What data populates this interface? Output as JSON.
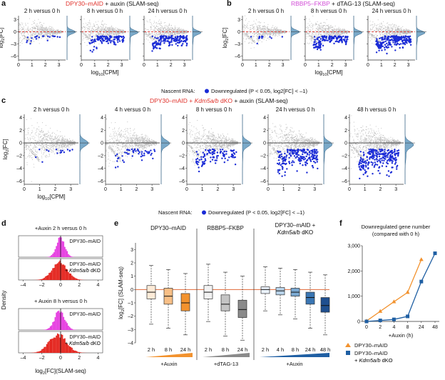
{
  "panels": {
    "a": {
      "letter": "a",
      "title_parts": [
        {
          "text": "DPY30–mAID",
          "color": "#e0312a"
        },
        {
          "text": " + auxin (SLAM-seq)",
          "color": "#111111"
        }
      ],
      "subplots": [
        "2 h versus 0 h",
        "8 h versus 0 h",
        "24 h versus 0 h"
      ],
      "ylabel": "log2[FC]",
      "xlabel": "log10[CPM]",
      "yticks": [
        "3",
        "0",
        "–3",
        "–6"
      ],
      "xticks": [
        "0",
        "1",
        "2",
        "3"
      ]
    },
    "b": {
      "letter": "b",
      "title_parts": [
        {
          "text": "RBBP5–FKBP",
          "color": "#d14bd6"
        },
        {
          "text": " + dTAG-13 (SLAM-seq)",
          "color": "#111111"
        }
      ],
      "subplots": [
        "2 h versus 0 h",
        "8 h versus 0 h",
        "24 h versus 0 h"
      ],
      "ylabel": "log2[FC]",
      "xlabel": "log10[CPM]",
      "yticks": [
        "3",
        "0",
        "–3",
        "–6"
      ],
      "xticks": [
        "0",
        "1",
        "2",
        "3"
      ]
    },
    "ab_legend": "Nascent RNA:  ● Downregulated (P < 0.05, log2[FC] < –1)",
    "c": {
      "letter": "c",
      "title_parts": [
        {
          "text": "DPY30–mAID + ",
          "color": "#e0312a"
        },
        {
          "text": "Kdm5a/b",
          "color": "#e0312a",
          "italic": true
        },
        {
          "text": " dKO",
          "color": "#e0312a"
        },
        {
          "text": " + auxin (SLAM-seq)",
          "color": "#111111"
        }
      ],
      "subplots": [
        "2 h versus 0 h",
        "4 h versus 0 h",
        "8 h versus 0 h",
        "24 h versus 0 h",
        "48 h versus 0 h"
      ],
      "ylabel": "log2[FC]",
      "xlabel": "log10[CPM]",
      "yticks": [
        "4",
        "2",
        "0",
        "–2",
        "–4",
        "–6"
      ],
      "xticks": [
        "0",
        "1",
        "2",
        "3"
      ],
      "legend": "Nascent RNA:  ● Downregulated (P < 0.05, log2[FC] < –1)"
    },
    "d": {
      "letter": "d",
      "ylabel": "Density",
      "xlabel": "log2[FC](SLAM-seq)",
      "xticks": [
        "–4",
        "–2",
        "0",
        "2",
        "4"
      ],
      "groups": [
        {
          "title": "+Auxin 2 h versus 0 h",
          "rows": [
            "DPY30–mAID",
            "DPY30–mAID + Kdm5a/b dKO"
          ]
        },
        {
          "title": "+ Auxin 8 h versus 0 h",
          "rows": [
            "DPY30–mAID",
            "DPY30–mAID + Kdm5a/b dKO"
          ]
        }
      ]
    },
    "e": {
      "letter": "e",
      "ylabel": "log2[FC] (SLAM-seq)",
      "yticks": [
        "3",
        "2",
        "1",
        "0",
        "–1",
        "–2",
        "–3",
        "–4"
      ],
      "groups": [
        "DPY30–mAID",
        "RBBP5–FKBP",
        "DPY30–mAID + Kdm5a/b dKO"
      ],
      "treatments": [
        "+Auxin",
        "+dTAG-13",
        "+Auxin"
      ]
    },
    "f": {
      "letter": "f",
      "title": "Downregulated gene number",
      "subtitle": "(compared with 0 h)",
      "xlabel": "+Auxin (h)",
      "legend": [
        "DPY30–mAID",
        "DPY30–mAID + Kdm5a/b dKO"
      ]
    }
  },
  "colors": {
    "grey_points": "#bcbcbc",
    "blue_points": "#1a2bd6",
    "red_line": "#e0312a",
    "density_blue": "#7aa9c9",
    "magenta": "#e63ee0",
    "red_hist": "#e4261f",
    "orange": "#f2922e",
    "blue_line": "#1f5fa3"
  },
  "chart_data": [
    {
      "type": "scatter",
      "panel": "a",
      "title": "DPY30–mAID + auxin (SLAM-seq)",
      "xlabel": "log10[CPM]",
      "ylabel": "log2[FC]",
      "xlim": [
        0,
        3.5
      ],
      "ylim": [
        -7,
        4
      ],
      "facets": [
        "2 h versus 0 h",
        "8 h versus 0 h",
        "24 h versus 0 h"
      ],
      "downregulated_fraction": [
        0.08,
        0.45,
        0.65
      ]
    },
    {
      "type": "scatter",
      "panel": "b",
      "title": "RBBP5–FKBP + dTAG-13 (SLAM-seq)",
      "xlabel": "log10[CPM]",
      "ylabel": "log2[FC]",
      "xlim": [
        0,
        3.5
      ],
      "ylim": [
        -7,
        4
      ],
      "facets": [
        "2 h versus 0 h",
        "8 h versus 0 h",
        "24 h versus 0 h"
      ],
      "downregulated_fraction": [
        0.05,
        0.55,
        0.8
      ]
    },
    {
      "type": "scatter",
      "panel": "c",
      "title": "DPY30–mAID + Kdm5a/b dKO + auxin (SLAM-seq)",
      "xlabel": "log10[CPM]",
      "ylabel": "log2[FC]",
      "xlim": [
        0,
        3.5
      ],
      "ylim": [
        -6.5,
        4.5
      ],
      "facets": [
        "2 h versus 0 h",
        "4 h versus 0 h",
        "8 h versus 0 h",
        "24 h versus 0 h",
        "48 h versus 0 h"
      ],
      "downregulated_fraction": [
        0.06,
        0.2,
        0.4,
        0.75,
        0.95
      ]
    },
    {
      "type": "area",
      "panel": "d",
      "xlabel": "log2[FC](SLAM-seq)",
      "ylabel": "Density",
      "xlim": [
        -4.5,
        4.5
      ],
      "series": [
        {
          "name": "DPY30–mAID",
          "timepoint": "2 h",
          "mean": 0.0,
          "sd": 0.45
        },
        {
          "name": "DPY30–mAID + Kdm5a/b dKO",
          "timepoint": "2 h",
          "mean": -0.1,
          "sd": 0.8
        },
        {
          "name": "DPY30–mAID",
          "timepoint": "8 h",
          "mean": -0.1,
          "sd": 0.55
        },
        {
          "name": "DPY30–mAID + Kdm5a/b dKO",
          "timepoint": "8 h",
          "mean": -0.3,
          "sd": 0.9
        }
      ]
    },
    {
      "type": "box",
      "panel": "e",
      "ylabel": "log2[FC] (SLAM-seq)",
      "ylim": [
        -4,
        3.5
      ],
      "categories": [
        "2 h",
        "8 h",
        "24 h",
        "2 h",
        "8 h",
        "24 h",
        "2 h",
        "4 h",
        "8 h",
        "24 h",
        "48 h"
      ],
      "groups": [
        "DPY30–mAID",
        "DPY30–mAID",
        "DPY30–mAID",
        "RBBP5–FKBP",
        "RBBP5–FKBP",
        "RBBP5–FKBP",
        "DPY30–mAID + Kdm5a/b dKO",
        "DPY30–mAID + Kdm5a/b dKO",
        "DPY30–mAID + Kdm5a/b dKO",
        "DPY30–mAID + Kdm5a/b dKO",
        "DPY30–mAID + Kdm5a/b dKO"
      ],
      "boxes": [
        {
          "q1": -0.7,
          "median": -0.2,
          "q3": 0.3,
          "wlo": -2.6,
          "whi": 1.8
        },
        {
          "q1": -1.1,
          "median": -0.5,
          "q3": 0.1,
          "wlo": -2.9,
          "whi": 1.5
        },
        {
          "q1": -1.6,
          "median": -1.0,
          "q3": -0.3,
          "wlo": -3.4,
          "whi": 1.2
        },
        {
          "q1": -0.7,
          "median": -0.2,
          "q3": 0.3,
          "wlo": -2.4,
          "whi": 1.9
        },
        {
          "q1": -1.6,
          "median": -1.1,
          "q3": -0.4,
          "wlo": -3.5,
          "whi": 1.3
        },
        {
          "q1": -2.1,
          "median": -1.5,
          "q3": -0.8,
          "wlo": -3.8,
          "whi": 1.0
        },
        {
          "q1": -0.3,
          "median": 0.0,
          "q3": 0.2,
          "wlo": -1.6,
          "whi": 1.7
        },
        {
          "q1": -0.4,
          "median": -0.1,
          "q3": 0.15,
          "wlo": -1.9,
          "whi": 1.6
        },
        {
          "q1": -0.5,
          "median": -0.2,
          "q3": 0.1,
          "wlo": -2.2,
          "whi": 1.5
        },
        {
          "q1": -1.1,
          "median": -0.6,
          "q3": -0.2,
          "wlo": -2.9,
          "whi": 1.3
        },
        {
          "q1": -1.7,
          "median": -1.2,
          "q3": -0.6,
          "wlo": -3.4,
          "whi": 1.1
        }
      ],
      "reference_line": 0
    },
    {
      "type": "line",
      "panel": "f",
      "title": "Downregulated gene number",
      "subtitle": "(compared with 0 h)",
      "xlabel": "+Auxin (h)",
      "categories": [
        "0",
        "2",
        "4",
        "8",
        "24",
        "48"
      ],
      "ylim": [
        0,
        3000
      ],
      "yticks": [
        "0",
        "1,000",
        "2,000",
        "3,000"
      ],
      "series": [
        {
          "name": "DPY30–mAID",
          "values": [
            20,
            400,
            780,
            1150,
            2450,
            null
          ],
          "marker": "triangle"
        },
        {
          "name": "DPY30–mAID + Kdm5a/b dKO",
          "values": [
            0,
            40,
            80,
            200,
            1580,
            2700
          ],
          "marker": "square"
        }
      ]
    }
  ]
}
